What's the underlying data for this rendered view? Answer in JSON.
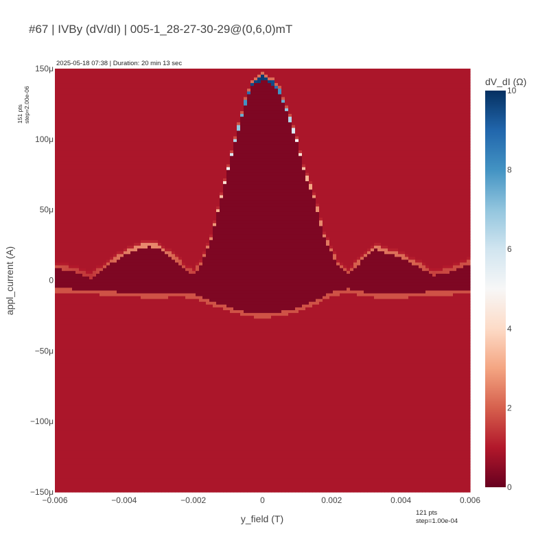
{
  "header": {
    "title": "#67 | IVBy (dV/dI) | 005-1_28-27-30-29@(0,6,0)mT",
    "meta": "2025-05-18 07:38 | Duration: 20 min 13 sec",
    "y_pts": "151 pts",
    "y_step": "step=2.00e-06",
    "x_pts": "121 pts",
    "x_step": "step=1.00e-04"
  },
  "chart_data": {
    "type": "heatmap",
    "title": "#67 | IVBy (dV/dI) | 005-1_28-27-30-29@(0,6,0)mT",
    "xlabel": "y_field (T)",
    "ylabel": "appl_current (A)",
    "xlim": [
      -0.006,
      0.006
    ],
    "ylim": [
      -0.00015,
      0.00015
    ],
    "x_tick_values": [
      -0.006,
      -0.004,
      -0.002,
      0,
      0.002,
      0.004,
      0.006
    ],
    "x_tick_labels": [
      "−0.006",
      "−0.004",
      "−0.002",
      "0",
      "0.002",
      "0.004",
      "0.006"
    ],
    "y_tick_values": [
      0.00015,
      0.0001,
      5e-05,
      0,
      -5e-05,
      -0.0001,
      -0.00015
    ],
    "y_tick_labels": [
      "150μ",
      "100μ",
      "50μ",
      "0",
      "−50μ",
      "−100μ",
      "−150μ"
    ],
    "nx": 121,
    "ny": 151,
    "colorbar": {
      "title": "dV_dI (Ω)",
      "range": [
        0,
        10
      ],
      "tick_values": [
        0,
        2,
        4,
        6,
        8,
        10
      ],
      "tick_labels": [
        "0",
        "2",
        "4",
        "6",
        "8",
        "10"
      ],
      "colorscale": [
        "#67001f",
        "#b2182b",
        "#d6604d",
        "#f4a582",
        "#fddbc7",
        "#f7f7f7",
        "#d1e5f0",
        "#92c5de",
        "#4393c3",
        "#2166ac",
        "#053061"
      ]
    },
    "levels": {
      "background": 0.9,
      "inside_superconducting": 0.3,
      "lower_edge_peak": 1.8,
      "lobe_edge_peak": 2.5
    },
    "upper_switching_current": {
      "field": [
        -0.006,
        -0.0055,
        -0.005,
        -0.0045,
        -0.004,
        -0.0035,
        -0.0033,
        -0.003,
        -0.0025,
        -0.0022,
        -0.002,
        -0.0018,
        -0.0015,
        -0.0012,
        -0.001,
        -0.0008,
        -0.0005,
        -0.0003,
        0,
        0.0003,
        0.0005,
        0.0008,
        0.001,
        0.0012,
        0.0015,
        0.0018,
        0.002,
        0.0022,
        0.0025,
        0.003,
        0.0033,
        0.0035,
        0.004,
        0.0045,
        0.005,
        0.0055,
        0.006
      ],
      "current": [
        1e-05,
        8e-06,
        3e-06,
        1.2e-05,
        2e-05,
        2.5e-05,
        2.6e-05,
        2.4e-05,
        1.5e-05,
        8e-06,
        6e-06,
        1.2e-05,
        3e-05,
        6e-05,
        8e-05,
        0.0001,
        0.000127,
        0.00014,
        0.000145,
        0.000141,
        0.000135,
        0.000115,
        0.0001,
        8e-05,
        6e-05,
        3.2e-05,
        2.2e-05,
        1.2e-05,
        6e-06,
        1.8e-05,
        2.4e-05,
        2.2e-05,
        1.8e-05,
        1.2e-05,
        5e-06,
        8e-06,
        1.3e-05
      ],
      "dvdi": [
        1.8,
        1.6,
        1.4,
        2,
        2.4,
        2.6,
        2.6,
        2.5,
        2,
        1.7,
        1.6,
        2,
        2.5,
        3.5,
        5,
        6.5,
        8,
        9.5,
        9.8,
        9.5,
        8,
        6.5,
        5,
        3.5,
        2.8,
        2.5,
        2.2,
        2,
        1.8,
        2.2,
        2.4,
        2.3,
        2.2,
        2,
        1.6,
        1.7,
        1.8
      ]
    },
    "lower_switching_current": {
      "field": [
        -0.006,
        -0.005,
        -0.004,
        -0.003,
        -0.0025,
        -0.002,
        -0.0015,
        -0.001,
        -0.0005,
        0,
        0.0005,
        0.001,
        0.0015,
        0.002,
        0.0025,
        0.003,
        0.0035,
        0.004,
        0.005,
        0.006
      ],
      "current": [
        -7e-06,
        -8e-06,
        -1e-05,
        -1.1e-05,
        -1e-05,
        -1.1e-05,
        -1.6e-05,
        -2e-05,
        -2.4e-05,
        -2.5e-05,
        -2.4e-05,
        -2.1e-05,
        -1.6e-05,
        -1e-05,
        -7e-06,
        -1e-05,
        -1.1e-05,
        -1.1e-05,
        -9e-06,
        -8e-06
      ]
    }
  }
}
